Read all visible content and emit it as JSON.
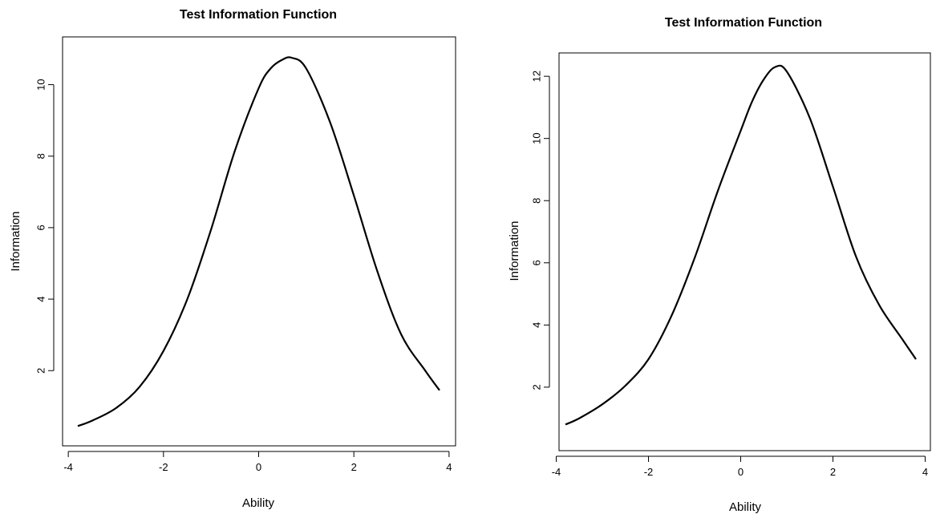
{
  "chart_data": [
    {
      "type": "line",
      "title": "Test Information Function",
      "xlabel": "Ability",
      "ylabel": "Information",
      "xlim": [
        -3.8,
        3.8
      ],
      "ylim": [
        0.3,
        11.0
      ],
      "xticks": [
        -4,
        -2,
        0,
        2,
        4
      ],
      "yticks": [
        2,
        4,
        6,
        8,
        10
      ],
      "grid": false,
      "legend": "none",
      "line_color": "#000000",
      "series": [
        {
          "x": [
            -3.8,
            -3.5,
            -3.0,
            -2.5,
            -2.0,
            -1.5,
            -1.0,
            -0.5,
            0.0,
            0.25,
            0.5,
            0.7,
            1.0,
            1.5,
            2.0,
            2.5,
            3.0,
            3.5,
            3.8
          ],
          "values": [
            0.45,
            0.6,
            0.95,
            1.55,
            2.55,
            4.0,
            5.95,
            8.15,
            9.9,
            10.45,
            10.7,
            10.75,
            10.45,
            8.95,
            6.9,
            4.75,
            3.0,
            2.0,
            1.45
          ]
        }
      ]
    },
    {
      "type": "line",
      "title": "Test Information Function",
      "xlabel": "Ability",
      "ylabel": "Information",
      "xlim": [
        -3.8,
        3.8
      ],
      "ylim": [
        0.5,
        12.7
      ],
      "xticks": [
        -4,
        -2,
        0,
        2,
        4
      ],
      "yticks": [
        2,
        4,
        6,
        8,
        10,
        12
      ],
      "grid": false,
      "legend": "none",
      "line_color": "#000000",
      "series": [
        {
          "x": [
            -3.8,
            -3.5,
            -3.0,
            -2.5,
            -2.0,
            -1.5,
            -1.0,
            -0.5,
            0.0,
            0.25,
            0.5,
            0.75,
            1.0,
            1.5,
            2.0,
            2.5,
            3.0,
            3.5,
            3.8
          ],
          "values": [
            0.8,
            1.0,
            1.45,
            2.05,
            2.9,
            4.3,
            6.15,
            8.3,
            10.25,
            11.2,
            11.9,
            12.3,
            12.15,
            10.65,
            8.45,
            6.2,
            4.65,
            3.55,
            2.9
          ]
        }
      ]
    }
  ]
}
